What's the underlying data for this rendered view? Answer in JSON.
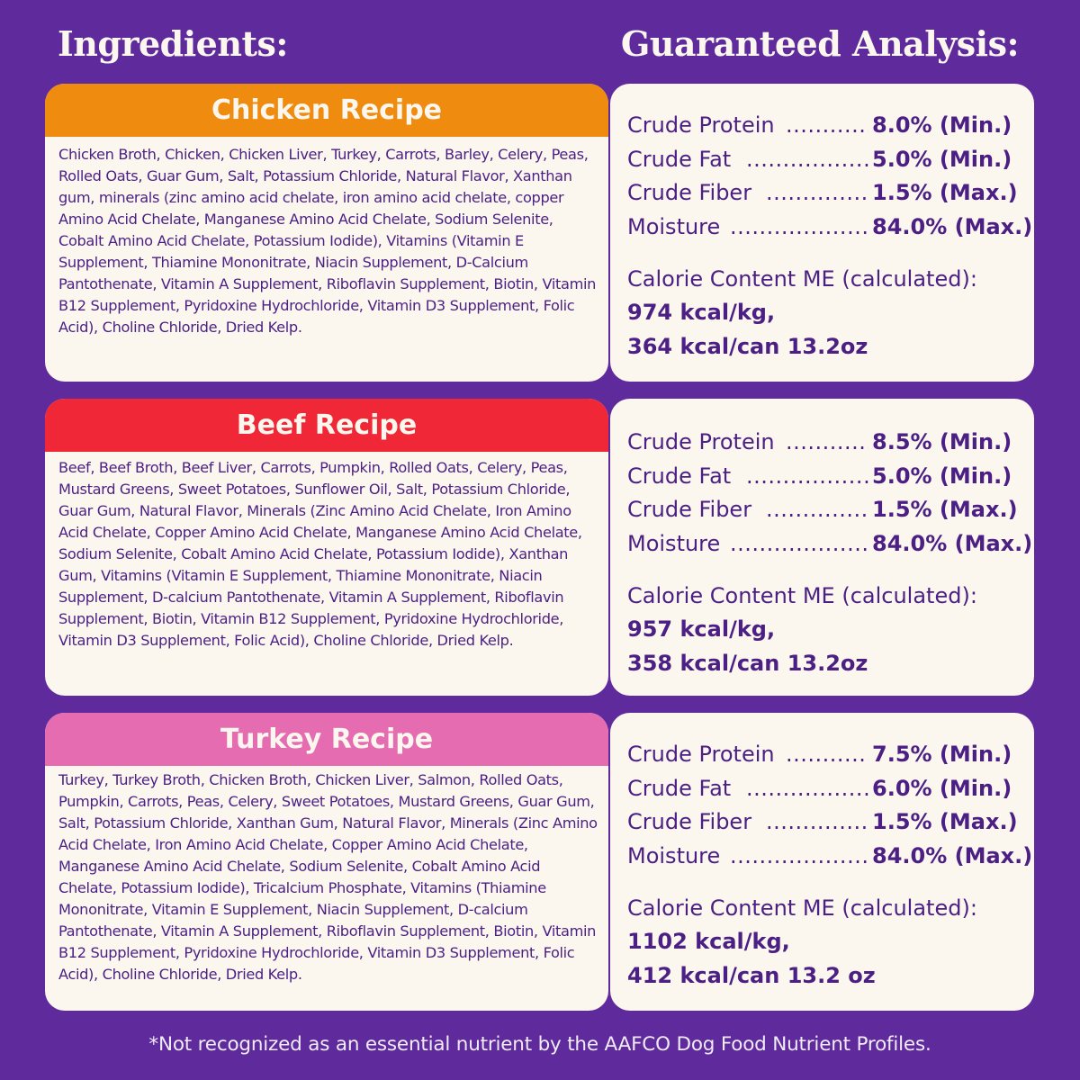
{
  "headings": {
    "ingredients": "Ingredients:",
    "analysis": "Guaranteed Analysis:"
  },
  "colors": {
    "background": "#5e2a9c",
    "card": "#fbf7ee",
    "text": "#4b1f83",
    "chicken": "#ef8c0f",
    "beef": "#ef2736",
    "turkey": "#e66cb2"
  },
  "recipes": [
    {
      "name": "Chicken Recipe",
      "ingredients": "Chicken Broth, Chicken, Chicken Liver, Turkey, Carrots, Barley, Celery, Peas, Rolled Oats, Guar Gum, Salt, Potassium Chloride, Natural Flavor, Xanthan gum, minerals (zinc amino acid chelate, iron amino acid chelate, copper Amino Acid Chelate, Manganese Amino Acid Chelate, Sodium Selenite, Cobalt Amino Acid Chelate, Potassium Iodide), Vitamins (Vitamin E Supplement, Thiamine Mononitrate, Niacin Supplement, D-Calcium Pantothenate, Vitamin A Supplement, Riboflavin Supplement, Biotin, Vitamin B12 Supplement, Pyridoxine Hydrochloride, Vitamin D3 Supplement, Folic Acid), Choline Chloride, Dried Kelp.",
      "analysis": [
        {
          "label": "Crude Protein",
          "value": "8.0% (Min.)"
        },
        {
          "label": "Crude  Fat",
          "value": "5.0% (Min.)"
        },
        {
          "label": "Crude  Fiber",
          "value": "1.5% (Max.)"
        },
        {
          "label": "Moisture",
          "value": "84.0% (Max.)"
        }
      ],
      "calorie_label": "Calorie Content ME (calculated):",
      "calorie_kg": "974 kcal/kg,",
      "calorie_can": "364 kcal/can 13.2oz"
    },
    {
      "name": "Beef Recipe",
      "ingredients": "Beef, Beef Broth, Beef Liver, Carrots, Pumpkin, Rolled Oats, Celery, Peas, Mustard Greens, Sweet Potatoes, Sunflower Oil, Salt, Potassium Chloride, Guar Gum, Natural Flavor, Minerals (Zinc Amino Acid Chelate, Iron Amino Acid Chelate, Copper Amino Acid Chelate, Manganese Amino Acid Chelate, Sodium Selenite, Cobalt Amino Acid Chelate, Potassium Iodide), Xanthan Gum, Vitamins (Vitamin E Supplement, Thiamine Mononitrate, Niacin Supplement, D-calcium Pantothenate, Vitamin A Supplement, Riboflavin Supplement, Biotin, Vitamin B12 Supplement, Pyridoxine Hydrochloride, Vitamin D3 Supplement, Folic Acid), Choline Chloride, Dried Kelp.",
      "analysis": [
        {
          "label": "Crude Protein",
          "value": "8.5% (Min.)"
        },
        {
          "label": "Crude  Fat",
          "value": "5.0% (Min.)"
        },
        {
          "label": "Crude  Fiber",
          "value": "1.5% (Max.)"
        },
        {
          "label": "Moisture",
          "value": "84.0% (Max.)"
        }
      ],
      "calorie_label": "Calorie Content ME (calculated):",
      "calorie_kg": "957 kcal/kg,",
      "calorie_can": "358 kcal/can 13.2oz"
    },
    {
      "name": "Turkey Recipe",
      "ingredients": "Turkey, Turkey Broth, Chicken Broth, Chicken Liver, Salmon, Rolled Oats, Pumpkin, Carrots, Peas, Celery, Sweet Potatoes, Mustard Greens, Guar Gum, Salt, Potassium Chloride, Xanthan Gum, Natural Flavor, Minerals (Zinc Amino Acid Chelate, Iron Amino Acid Chelate, Copper Amino Acid Chelate, Manganese Amino Acid Chelate, Sodium Selenite, Cobalt Amino Acid Chelate, Potassium Iodide), Tricalcium Phosphate, Vitamins (Thiamine Mononitrate, Vitamin E Supplement, Niacin Supplement, D-calcium Pantothenate, Vitamin A Supplement, Riboflavin Supplement, Biotin, Vitamin B12 Supplement, Pyridoxine Hydrochloride, Vitamin D3 Supplement, Folic Acid), Choline Chloride, Dried Kelp.",
      "analysis": [
        {
          "label": "Crude Protein",
          "value": "7.5% (Min.)"
        },
        {
          "label": "Crude  Fat",
          "value": "6.0% (Min.)"
        },
        {
          "label": "Crude  Fiber",
          "value": "1.5% (Max.)"
        },
        {
          "label": "Moisture",
          "value": "84.0% (Max.)"
        }
      ],
      "calorie_label": "Calorie Content ME (calculated):",
      "calorie_kg": "1102 kcal/kg,",
      "calorie_can": "412 kcal/can 13.2 oz"
    }
  ],
  "footnote": "*Not recognized as an essential nutrient by the AAFCO Dog Food Nutrient Profiles."
}
